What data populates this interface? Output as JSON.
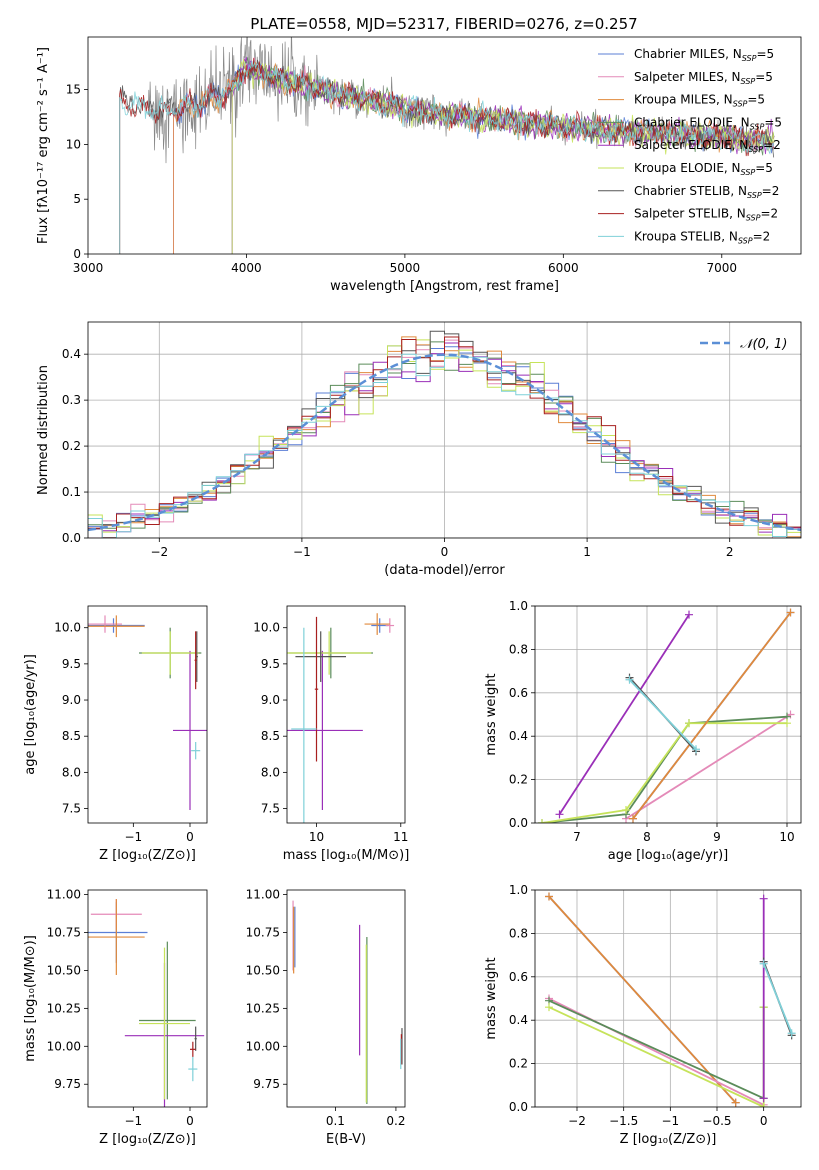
{
  "page": {
    "title": "PLATE=0558, MJD=52317, FIBERID=0276, z=0.257"
  },
  "colors": {
    "chabrier_miles": "#5b7fd6",
    "salpeter_miles": "#e48ab8",
    "kroupa_miles": "#e08a3c",
    "chabrier_elodie": "#5b8c5a",
    "salpeter_elodie": "#9a2fb8",
    "kroupa_elodie": "#c6e35a",
    "chabrier_stelib": "#555555",
    "salpeter_stelib": "#a82020",
    "kroupa_stelib": "#7fd0d8",
    "normal_curve": "#5b8fd6",
    "grid": "#b0b0b0"
  },
  "chart_data": [
    {
      "id": "spectrum",
      "type": "line",
      "title": "PLATE=0558, MJD=52317, FIBERID=0276, z=0.257",
      "xlabel": "wavelength [Angstrom, rest frame]",
      "ylabel": "Flux [fλ10⁻¹⁷ erg cm⁻² s⁻¹ A⁻¹]",
      "xlim": [
        3000,
        7500
      ],
      "ylim": [
        0,
        19.8
      ],
      "xticks": [
        3000,
        4000,
        5000,
        6000,
        7000
      ],
      "yticks": [
        0,
        5,
        10,
        15
      ],
      "grid": false,
      "legend_position": "top-right",
      "series": [
        {
          "name": "Chabrier MILES, N",
          "sub": "SSP",
          "suffix": "=5",
          "color_key": "chabrier_miles"
        },
        {
          "name": "Salpeter MILES, N",
          "sub": "SSP",
          "suffix": "=5",
          "color_key": "salpeter_miles"
        },
        {
          "name": "Kroupa MILES, N",
          "sub": "SSP",
          "suffix": "=5",
          "color_key": "kroupa_miles"
        },
        {
          "name": "Chabrier ELODIE, N",
          "sub": "SSP",
          "suffix": "=5",
          "color_key": "chabrier_elodie"
        },
        {
          "name": "Salpeter ELODIE, N",
          "sub": "SSP",
          "suffix": "=2",
          "color_key": "salpeter_elodie"
        },
        {
          "name": "Kroupa ELODIE, N",
          "sub": "SSP",
          "suffix": "=5",
          "color_key": "kroupa_elodie"
        },
        {
          "name": "Chabrier STELIB, N",
          "sub": "SSP",
          "suffix": "=2",
          "color_key": "chabrier_stelib"
        },
        {
          "name": "Salpeter STELIB, N",
          "sub": "SSP",
          "suffix": "=2",
          "color_key": "salpeter_stelib"
        },
        {
          "name": "Kroupa STELIB, N",
          "sub": "SSP",
          "suffix": "=2",
          "color_key": "kroupa_stelib"
        }
      ],
      "continuum": {
        "x": [
          3200,
          3300,
          3400,
          3500,
          3650,
          3800,
          3900,
          4000,
          4200,
          4400,
          4600,
          4800,
          5000,
          5200,
          5500,
          5800,
          6100,
          6400,
          6700,
          7000,
          7300
        ],
        "y": [
          14.0,
          13.5,
          13.2,
          13.0,
          13.5,
          14.2,
          15.0,
          17.0,
          16.0,
          15.3,
          14.5,
          14.0,
          13.3,
          12.8,
          12.4,
          11.9,
          11.5,
          11.2,
          11.0,
          10.6,
          10.2
        ]
      },
      "model_start_x": {
        "miles": 3540,
        "elodie": 3910,
        "stelib": 3200
      },
      "data_start_x": 3380
    },
    {
      "id": "residuals",
      "type": "histogram",
      "xlabel": "(data-model)/error",
      "ylabel": "Normed distribution",
      "xlim": [
        -2.5,
        2.5
      ],
      "ylim": [
        0,
        0.47
      ],
      "xticks": [
        -2,
        -1,
        0,
        1,
        2
      ],
      "yticks": [
        0.0,
        0.1,
        0.2,
        0.3,
        0.4
      ],
      "grid": true,
      "legend_position": "top-right",
      "normal_label": "𝒩(0, 1)",
      "bin_width": 0.1
    },
    {
      "id": "age_vs_Z",
      "type": "errorbar",
      "xlabel": "Z [log₁₀(Z/Z⊙)]",
      "ylabel": "age  [log₁₀(age/yr)]",
      "xlim": [
        -1.8,
        0.3
      ],
      "ylim": [
        7.3,
        10.3
      ],
      "xticks": [
        -1,
        0
      ],
      "yticks": [
        7.5,
        8.0,
        8.5,
        9.0,
        9.5,
        10.0
      ],
      "points": [
        {
          "color_key": "chabrier_miles",
          "x": -1.35,
          "xerr": 0.55,
          "y": 10.03,
          "yerr": 0.1
        },
        {
          "color_key": "salpeter_miles",
          "x": -1.5,
          "xerr": 0.3,
          "y": 10.05,
          "yerr": 0.12
        },
        {
          "color_key": "kroupa_miles",
          "x": -1.3,
          "xerr": 0.5,
          "y": 10.02,
          "yerr": 0.15
        },
        {
          "color_key": "chabrier_elodie",
          "x": -0.35,
          "xerr": 0.55,
          "y": 9.65,
          "yerr": 0.35
        },
        {
          "color_key": "salpeter_elodie",
          "x": 0.0,
          "xerr": 0.3,
          "y": 8.58,
          "yerr": 1.1
        },
        {
          "color_key": "kroupa_elodie",
          "x": -0.35,
          "xerr": 0.5,
          "y": 9.65,
          "yerr": 0.3
        },
        {
          "color_key": "chabrier_stelib",
          "x": 0.12,
          "xerr": 0.02,
          "y": 9.6,
          "yerr": 0.35
        },
        {
          "color_key": "salpeter_stelib",
          "x": 0.1,
          "xerr": 0.02,
          "y": 9.55,
          "yerr": 0.4
        },
        {
          "color_key": "kroupa_stelib",
          "x": 0.1,
          "xerr": 0.08,
          "y": 8.3,
          "yerr": 0.12
        }
      ]
    },
    {
      "id": "age_vs_mass",
      "type": "errorbar",
      "xlabel": "mass [log₁₀(M/M⊙)]",
      "ylabel": "",
      "xlim": [
        9.65,
        11.05
      ],
      "ylim": [
        7.3,
        10.3
      ],
      "xticks": [
        10,
        11
      ],
      "yticks": [
        7.5,
        8.0,
        8.5,
        9.0,
        9.5,
        10.0
      ],
      "points": [
        {
          "color_key": "chabrier_miles",
          "x": 10.75,
          "xerr": 0.1,
          "y": 10.03,
          "yerr": 0.1
        },
        {
          "color_key": "salpeter_miles",
          "x": 10.87,
          "xerr": 0.05,
          "y": 10.03,
          "yerr": 0.1
        },
        {
          "color_key": "kroupa_miles",
          "x": 10.72,
          "xerr": 0.15,
          "y": 10.05,
          "yerr": 0.15
        },
        {
          "color_key": "chabrier_elodie",
          "x": 10.17,
          "xerr": 0.5,
          "y": 9.65,
          "yerr": 0.35
        },
        {
          "color_key": "salpeter_elodie",
          "x": 10.07,
          "xerr": 0.48,
          "y": 8.58,
          "yerr": 1.1
        },
        {
          "color_key": "kroupa_elodie",
          "x": 10.15,
          "xerr": 0.5,
          "y": 9.65,
          "yerr": 0.3
        },
        {
          "color_key": "chabrier_stelib",
          "x": 10.05,
          "xerr": 0.3,
          "y": 9.6,
          "yerr": 0.35
        },
        {
          "color_key": "salpeter_stelib",
          "x": 10.0,
          "xerr": 0.02,
          "y": 9.15,
          "yerr": 1.0
        },
        {
          "color_key": "kroupa_stelib",
          "x": 9.85,
          "xerr": 0.15,
          "y": 8.6,
          "yerr": 1.4
        }
      ]
    },
    {
      "id": "weight_vs_age",
      "type": "line",
      "xlabel": "age  [log₁₀(age/yr)]",
      "ylabel": "mass weight",
      "xlim": [
        6.4,
        10.2
      ],
      "ylim": [
        0,
        1.0
      ],
      "xticks": [
        7,
        8,
        9,
        10
      ],
      "yticks": [
        0.0,
        0.2,
        0.4,
        0.6,
        0.8,
        1.0
      ],
      "grid": true,
      "series": [
        {
          "color_key": "salpeter_elodie",
          "x": [
            6.75,
            8.6
          ],
          "y": [
            0.04,
            0.96
          ]
        },
        {
          "color_key": "salpeter_miles",
          "x": [
            7.7,
            10.05
          ],
          "y": [
            0.02,
            0.5
          ]
        },
        {
          "color_key": "chabrier_elodie",
          "x": [
            6.5,
            7.7,
            8.6,
            10.0
          ],
          "y": [
            0.0,
            0.04,
            0.46,
            0.49
          ]
        },
        {
          "color_key": "kroupa_elodie",
          "x": [
            6.5,
            7.7,
            8.6,
            10.0
          ],
          "y": [
            0.0,
            0.06,
            0.46,
            0.46
          ]
        },
        {
          "color_key": "chabrier_miles",
          "x": [
            7.8,
            10.05
          ],
          "y": [
            0.02,
            0.97
          ]
        },
        {
          "color_key": "kroupa_miles",
          "x": [
            7.8,
            10.05
          ],
          "y": [
            0.02,
            0.97
          ]
        },
        {
          "color_key": "chabrier_stelib",
          "x": [
            7.75,
            8.7
          ],
          "y": [
            0.67,
            0.33
          ]
        },
        {
          "color_key": "kroupa_stelib",
          "x": [
            7.75,
            8.7
          ],
          "y": [
            0.66,
            0.34
          ]
        }
      ]
    },
    {
      "id": "mass_vs_Z",
      "type": "errorbar",
      "xlabel": "Z [log₁₀(Z/Z⊙)]",
      "ylabel": "mass [log₁₀(M/M⊙)]",
      "xlim": [
        -1.8,
        0.3
      ],
      "ylim": [
        9.6,
        11.03
      ],
      "xticks": [
        -1,
        0
      ],
      "yticks": [
        9.75,
        10.0,
        10.25,
        10.5,
        10.75,
        11.0
      ],
      "points": [
        {
          "color_key": "chabrier_miles",
          "x": -1.3,
          "xerr": 0.55,
          "y": 10.75,
          "yerr": 0.2
        },
        {
          "color_key": "salpeter_miles",
          "x": -1.3,
          "xerr": 0.45,
          "y": 10.87,
          "yerr": 0.1
        },
        {
          "color_key": "kroupa_miles",
          "x": -1.3,
          "xerr": 0.5,
          "y": 10.72,
          "yerr": 0.25
        },
        {
          "color_key": "chabrier_elodie",
          "x": -0.4,
          "xerr": 0.5,
          "y": 10.17,
          "yerr": 0.52
        },
        {
          "color_key": "salpeter_elodie",
          "x": -0.45,
          "xerr": 0.7,
          "y": 10.07,
          "yerr": 0.48
        },
        {
          "color_key": "kroupa_elodie",
          "x": -0.45,
          "xerr": 0.45,
          "y": 10.15,
          "yerr": 0.5
        },
        {
          "color_key": "chabrier_stelib",
          "x": 0.1,
          "xerr": 0.02,
          "y": 10.05,
          "yerr": 0.08
        },
        {
          "color_key": "salpeter_stelib",
          "x": 0.05,
          "xerr": 0.05,
          "y": 9.98,
          "yerr": 0.05
        },
        {
          "color_key": "kroupa_stelib",
          "x": 0.05,
          "xerr": 0.08,
          "y": 9.85,
          "yerr": 0.08
        }
      ]
    },
    {
      "id": "mass_vs_ebv",
      "type": "errorbar",
      "xlabel": "E(B-V)",
      "ylabel": "",
      "xlim": [
        0.02,
        0.215
      ],
      "ylim": [
        9.6,
        11.03
      ],
      "xticks": [
        0.1,
        0.2
      ],
      "yticks": [
        9.75,
        10.0,
        10.25,
        10.5,
        10.75,
        11.0
      ],
      "points": [
        {
          "color_key": "chabrier_miles",
          "x": 0.033,
          "xerr": 0,
          "y": 10.72,
          "yerr": 0.2
        },
        {
          "color_key": "salpeter_miles",
          "x": 0.03,
          "xerr": 0,
          "y": 10.73,
          "yerr": 0.23
        },
        {
          "color_key": "kroupa_miles",
          "x": 0.031,
          "xerr": 0,
          "y": 10.7,
          "yerr": 0.22
        },
        {
          "color_key": "chabrier_elodie",
          "x": 0.152,
          "xerr": 0,
          "y": 10.17,
          "yerr": 0.55
        },
        {
          "color_key": "salpeter_elodie",
          "x": 0.14,
          "xerr": 0,
          "y": 10.37,
          "yerr": 0.43
        },
        {
          "color_key": "kroupa_elodie",
          "x": 0.151,
          "xerr": 0,
          "y": 10.15,
          "yerr": 0.52
        },
        {
          "color_key": "chabrier_stelib",
          "x": 0.21,
          "xerr": 0,
          "y": 10.0,
          "yerr": 0.12
        },
        {
          "color_key": "salpeter_stelib",
          "x": 0.209,
          "xerr": 0,
          "y": 9.98,
          "yerr": 0.1
        },
        {
          "color_key": "kroupa_stelib",
          "x": 0.208,
          "xerr": 0,
          "y": 9.95,
          "yerr": 0.1
        }
      ]
    },
    {
      "id": "weight_vs_Z",
      "type": "line",
      "xlabel": "Z [log₁₀(Z/Z⊙)]",
      "ylabel": "mass weight",
      "xlim": [
        -2.45,
        0.4
      ],
      "ylim": [
        0,
        1.0
      ],
      "xticks": [
        -2.0,
        -1.5,
        -1.0,
        -0.5,
        0.0
      ],
      "yticks": [
        0.0,
        0.2,
        0.4,
        0.6,
        0.8,
        1.0
      ],
      "grid": true,
      "series": [
        {
          "color_key": "chabrier_miles",
          "x": [
            -2.3,
            -0.3
          ],
          "y": [
            0.97,
            0.02
          ]
        },
        {
          "color_key": "kroupa_miles",
          "x": [
            -2.3,
            -0.3
          ],
          "y": [
            0.97,
            0.02
          ]
        },
        {
          "color_key": "salpeter_miles",
          "x": [
            -2.3,
            0.0
          ],
          "y": [
            0.5,
            0.01
          ]
        },
        {
          "color_key": "chabrier_elodie",
          "x": [
            -2.3,
            0.0,
            0.0
          ],
          "y": [
            0.49,
            0.04,
            0.46
          ]
        },
        {
          "color_key": "kroupa_elodie",
          "x": [
            -2.3,
            0.0,
            0.0
          ],
          "y": [
            0.46,
            0.0,
            0.46
          ]
        },
        {
          "color_key": "salpeter_elodie",
          "x": [
            0.0,
            0.0
          ],
          "y": [
            0.04,
            0.96
          ]
        },
        {
          "color_key": "chabrier_stelib",
          "x": [
            0.0,
            0.3
          ],
          "y": [
            0.67,
            0.33
          ]
        },
        {
          "color_key": "kroupa_stelib",
          "x": [
            0.0,
            0.3
          ],
          "y": [
            0.66,
            0.34
          ]
        }
      ]
    }
  ]
}
